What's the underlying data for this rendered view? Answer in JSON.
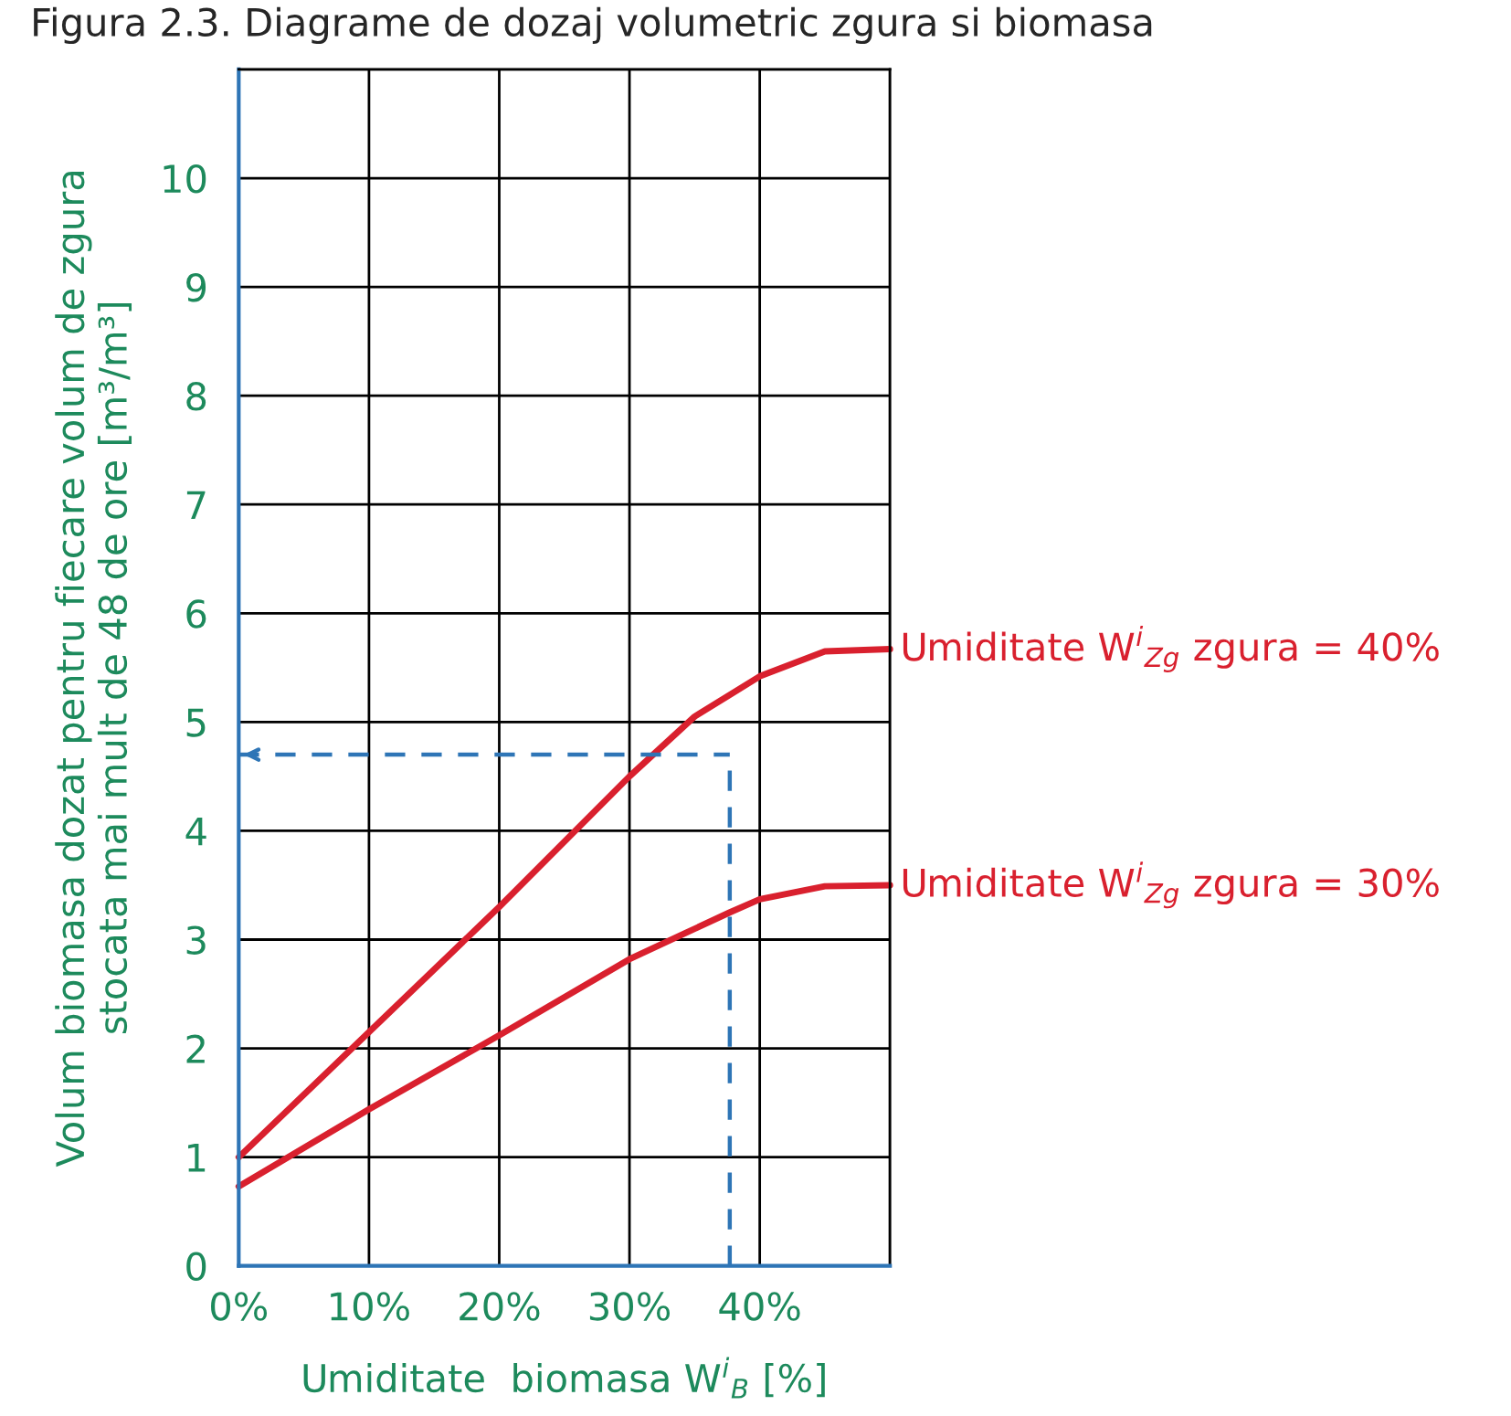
{
  "chart_data": {
    "type": "line",
    "title": "Figura 2.3. Diagrame de dozaj volumetric zgura si biomasa",
    "xlabel": "Umiditate  biomasa W$^{i}$$_{B}$ [%]",
    "ylabel": "Volum biomasa dozat pentru fiecare volum de zgura\nstocata mai mult de 48 de ore [m³/m³]",
    "xlim": [
      0,
      50
    ],
    "ylim": [
      0,
      11
    ],
    "xticks": [
      {
        "value": 0,
        "label": "0%"
      },
      {
        "value": 10,
        "label": "10%"
      },
      {
        "value": 20,
        "label": "20%"
      },
      {
        "value": 30,
        "label": "30%"
      },
      {
        "value": 40,
        "label": "40%"
      },
      {
        "value": 50,
        "label": null
      }
    ],
    "yticks": [
      0,
      1,
      2,
      3,
      4,
      5,
      6,
      7,
      8,
      9,
      10,
      {
        "value": 11,
        "label": null
      }
    ],
    "grid": true,
    "legend": false,
    "marker": "none",
    "line_style": "solid",
    "series": [
      {
        "name": "Umiditate W$^{i}$$_{Zg}$ zgura = 40%",
        "color": "#d9202e",
        "x": [
          0,
          10,
          20,
          30,
          35,
          40,
          45,
          50
        ],
        "values": [
          1.0,
          2.15,
          3.3,
          4.5,
          5.05,
          5.42,
          5.65,
          5.67
        ]
      },
      {
        "name": "Umiditate W$^{i}$$_{Zg}$ zgura = 30%",
        "color": "#d9202e",
        "x": [
          0,
          10,
          20,
          30,
          37.7,
          40,
          45,
          50
        ],
        "values": [
          0.73,
          1.44,
          2.12,
          2.82,
          3.25,
          3.37,
          3.49,
          3.5
        ]
      }
    ],
    "ref_lines": [
      {
        "axis": "x",
        "value": 37.7,
        "color": "#2e75b6",
        "line_style": "dashed"
      },
      {
        "axis": "y",
        "value": 4.7,
        "color": "#2e75b6",
        "line_style": "dashed"
      }
    ]
  }
}
